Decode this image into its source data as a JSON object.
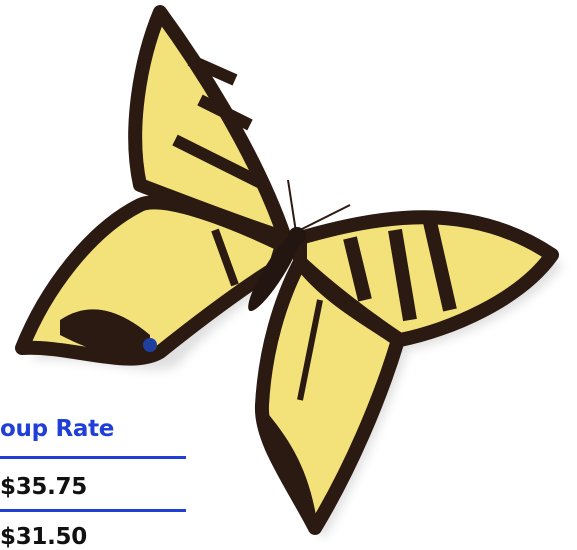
{
  "table": {
    "header": "oup Rate",
    "rows": [
      "$35.75",
      "$31.50"
    ]
  }
}
